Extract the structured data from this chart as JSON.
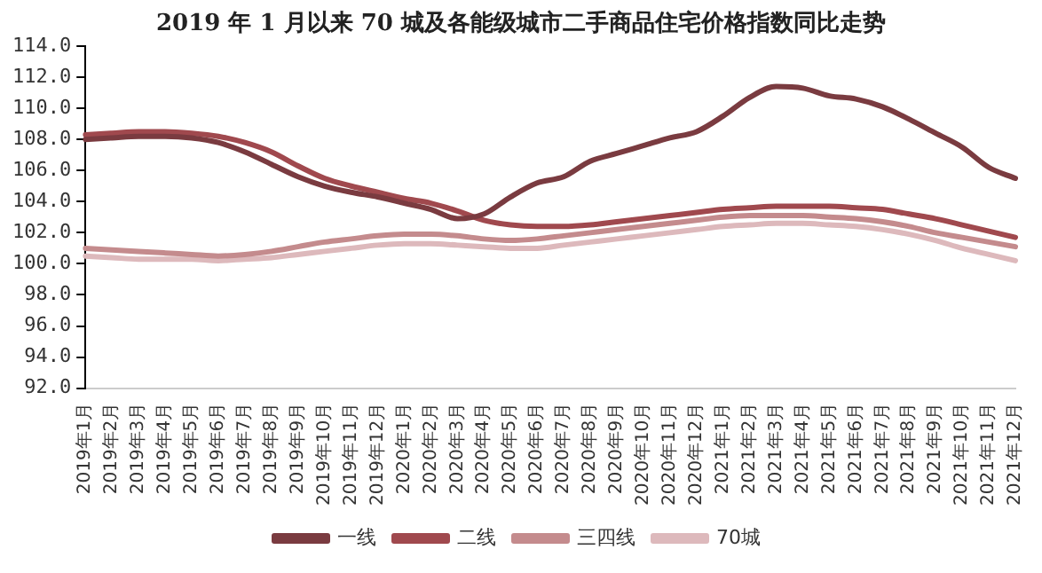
{
  "chart_data": {
    "type": "line",
    "title": "2019 年 1 月以来 70 城及各能级城市二手商品住宅价格指数同比走势",
    "categories": [
      "2019年1月",
      "2019年2月",
      "2019年3月",
      "2019年4月",
      "2019年5月",
      "2019年6月",
      "2019年7月",
      "2019年8月",
      "2019年9月",
      "2019年10月",
      "2019年11月",
      "2019年12月",
      "2020年1月",
      "2020年2月",
      "2020年3月",
      "2020年4月",
      "2020年5月",
      "2020年6月",
      "2020年7月",
      "2020年8月",
      "2020年9月",
      "2020年10月",
      "2020年11月",
      "2020年12月",
      "2021年1月",
      "2021年2月",
      "2021年3月",
      "2021年4月",
      "2021年5月",
      "2021年6月",
      "2021年7月",
      "2021年8月",
      "2021年9月",
      "2021年10月",
      "2021年11月",
      "2021年12月"
    ],
    "series": [
      {
        "name": "一线",
        "color": "#7a3b40",
        "values": [
          108.0,
          108.1,
          108.2,
          108.2,
          108.1,
          107.8,
          107.2,
          106.4,
          105.6,
          105.0,
          104.6,
          104.3,
          103.9,
          103.5,
          102.9,
          103.2,
          104.3,
          105.2,
          105.6,
          106.6,
          107.1,
          107.6,
          108.1,
          108.5,
          109.5,
          110.7,
          111.4,
          111.3,
          110.8,
          110.6,
          110.1,
          109.3,
          108.4,
          107.5,
          106.2,
          105.5
        ]
      },
      {
        "name": "二线",
        "color": "#a0494e",
        "values": [
          108.3,
          108.4,
          108.5,
          108.5,
          108.4,
          108.2,
          107.8,
          107.2,
          106.3,
          105.5,
          105.0,
          104.6,
          104.2,
          103.9,
          103.4,
          102.8,
          102.5,
          102.4,
          102.4,
          102.5,
          102.7,
          102.9,
          103.1,
          103.3,
          103.5,
          103.6,
          103.7,
          103.7,
          103.7,
          103.6,
          103.5,
          103.2,
          102.9,
          102.5,
          102.1,
          101.7
        ]
      },
      {
        "name": "三四线",
        "color": "#c48b8d",
        "values": [
          101.0,
          100.9,
          100.8,
          100.7,
          100.6,
          100.5,
          100.6,
          100.8,
          101.1,
          101.4,
          101.6,
          101.8,
          101.9,
          101.9,
          101.8,
          101.6,
          101.5,
          101.6,
          101.8,
          102.0,
          102.2,
          102.4,
          102.6,
          102.8,
          103.0,
          103.1,
          103.1,
          103.1,
          103.0,
          102.9,
          102.7,
          102.4,
          102.0,
          101.7,
          101.4,
          101.1
        ]
      },
      {
        "name": "70城",
        "color": "#ddb9bc",
        "values": [
          100.5,
          100.4,
          100.3,
          100.3,
          100.3,
          100.2,
          100.3,
          100.4,
          100.6,
          100.8,
          101.0,
          101.2,
          101.3,
          101.3,
          101.2,
          101.1,
          101.0,
          101.0,
          101.2,
          101.4,
          101.6,
          101.8,
          102.0,
          102.2,
          102.4,
          102.5,
          102.6,
          102.6,
          102.5,
          102.4,
          102.2,
          101.9,
          101.5,
          101.0,
          100.6,
          100.2
        ]
      }
    ],
    "ylim": [
      92,
      114
    ],
    "yticks": [
      {
        "value": 92,
        "label": "92.0"
      },
      {
        "value": 94,
        "label": "94.0"
      },
      {
        "value": 96,
        "label": "96.0"
      },
      {
        "value": 98,
        "label": "98.0"
      },
      {
        "value": 100,
        "label": "100.0"
      },
      {
        "value": 102,
        "label": "102.0"
      },
      {
        "value": 104,
        "label": "104.0"
      },
      {
        "value": 106,
        "label": "106.0"
      },
      {
        "value": 108,
        "label": "108.0"
      },
      {
        "value": 110,
        "label": "110.0"
      },
      {
        "value": 112,
        "label": "112.0"
      },
      {
        "value": 114,
        "label": "114.0"
      }
    ],
    "grid": false,
    "legend": "bottom",
    "marker": "none",
    "line_style": "solid"
  }
}
